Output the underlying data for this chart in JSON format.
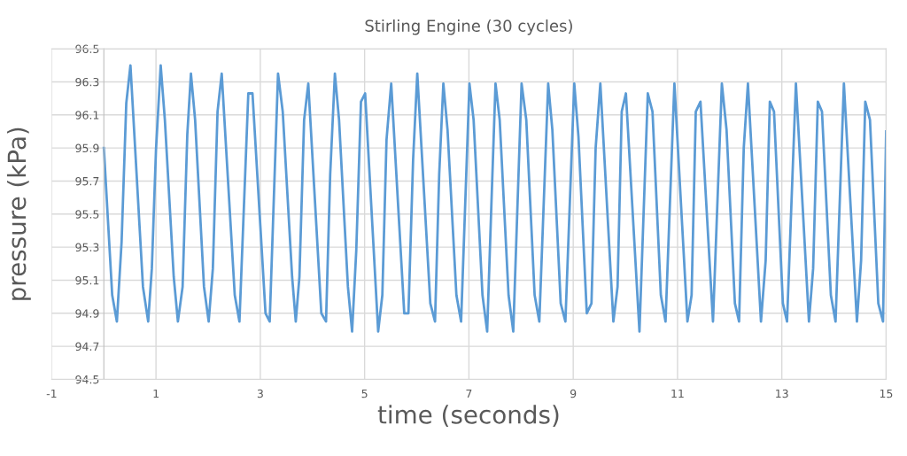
{
  "chart_data": {
    "type": "line",
    "title": "Stirling Engine (30 cycles)",
    "xlabel": "time (seconds)",
    "ylabel": "pressure (kPa)",
    "xlim": [
      -1,
      15
    ],
    "xticks": [
      -1,
      1,
      3,
      5,
      7,
      9,
      11,
      13,
      15
    ],
    "ylim": [
      94.5,
      96.5
    ],
    "yticks": [
      {
        "value": 94.5,
        "label": "94.5"
      },
      {
        "value": 94.7,
        "label": "94.7"
      },
      {
        "value": 94.9,
        "label": "94.9"
      },
      {
        "value": 95.1,
        "label": "95.1"
      },
      {
        "value": 95.3,
        "label": "95.3"
      },
      {
        "value": 95.5,
        "label": "95.5"
      },
      {
        "value": 95.7,
        "label": "95.7"
      },
      {
        "value": 95.9,
        "label": "95.9"
      },
      {
        "value": 96.1,
        "label": "96.1"
      },
      {
        "value": 96.3,
        "label": "96.3"
      },
      {
        "value": 96.5,
        "label": "96.5"
      }
    ],
    "grid": true,
    "legend": false,
    "marker": "none",
    "line_style": "solid",
    "series": [
      {
        "color": "#5b9bd5",
        "x": [
          0,
          0.16,
          0.25,
          0.34,
          0.43,
          0.51,
          0.75,
          0.85,
          0.92,
          1.0,
          1.09,
          1.17,
          1.34,
          1.42,
          1.51,
          1.6,
          1.67,
          1.75,
          1.92,
          2.01,
          2.09,
          2.18,
          2.26,
          2.51,
          2.6,
          2.77,
          2.85,
          3.1,
          3.18,
          3.34,
          3.43,
          3.61,
          3.68,
          3.75,
          3.84,
          3.92,
          4.17,
          4.26,
          4.34,
          4.43,
          4.51,
          4.68,
          4.76,
          4.84,
          4.93,
          5.01,
          5.26,
          5.34,
          5.42,
          5.51,
          5.76,
          5.84,
          5.93,
          6.01,
          6.26,
          6.35,
          6.43,
          6.51,
          6.59,
          6.76,
          6.85,
          7.01,
          7.09,
          7.26,
          7.35,
          7.43,
          7.51,
          7.59,
          7.76,
          7.85,
          8.01,
          8.1,
          8.26,
          8.35,
          8.52,
          8.6,
          8.76,
          8.85,
          9.02,
          9.1,
          9.26,
          9.35,
          9.43,
          9.52,
          9.77,
          9.85,
          9.93,
          10.01,
          10.27,
          10.43,
          10.52,
          10.68,
          10.77,
          10.94,
          11.19,
          11.27,
          11.35,
          11.44,
          11.68,
          11.85,
          11.94,
          12.1,
          12.18,
          12.27,
          12.35,
          12.6,
          12.69,
          12.77,
          12.85,
          13.02,
          13.1,
          13.27,
          13.52,
          13.6,
          13.69,
          13.77,
          13.94,
          14.03,
          14.19,
          14.44,
          14.52,
          14.6,
          14.69,
          14.85,
          14.94,
          15.0
        ],
        "values": [
          95.9,
          95.01,
          94.85,
          95.33,
          96.17,
          96.4,
          95.06,
          94.85,
          95.17,
          95.89,
          96.4,
          96.07,
          95.12,
          94.85,
          95.06,
          95.98,
          96.35,
          96.07,
          95.06,
          94.85,
          95.17,
          96.12,
          96.35,
          95.01,
          94.85,
          96.23,
          96.23,
          94.9,
          94.85,
          96.35,
          96.12,
          95.12,
          94.85,
          95.12,
          96.07,
          96.29,
          94.9,
          94.85,
          95.74,
          96.35,
          96.07,
          95.06,
          94.79,
          95.28,
          96.18,
          96.23,
          94.79,
          95.01,
          95.95,
          96.29,
          94.9,
          94.9,
          95.83,
          96.35,
          94.96,
          94.85,
          95.74,
          96.29,
          96.01,
          95.01,
          94.85,
          96.29,
          96.07,
          95.01,
          94.79,
          95.55,
          96.29,
          96.07,
          95.01,
          94.79,
          96.29,
          96.07,
          95.01,
          94.85,
          96.29,
          96.01,
          94.96,
          94.85,
          96.29,
          95.97,
          94.9,
          94.96,
          95.9,
          96.29,
          94.85,
          95.06,
          96.12,
          96.23,
          94.79,
          96.23,
          96.12,
          95.01,
          94.85,
          96.29,
          94.85,
          95.01,
          96.12,
          96.18,
          94.85,
          96.29,
          96.01,
          94.96,
          94.85,
          95.9,
          96.29,
          94.85,
          95.22,
          96.18,
          96.12,
          94.96,
          94.85,
          96.29,
          94.85,
          95.17,
          96.18,
          96.12,
          95.01,
          94.85,
          96.29,
          94.85,
          95.22,
          96.18,
          96.07,
          94.96,
          94.85,
          96.0
        ]
      }
    ]
  }
}
